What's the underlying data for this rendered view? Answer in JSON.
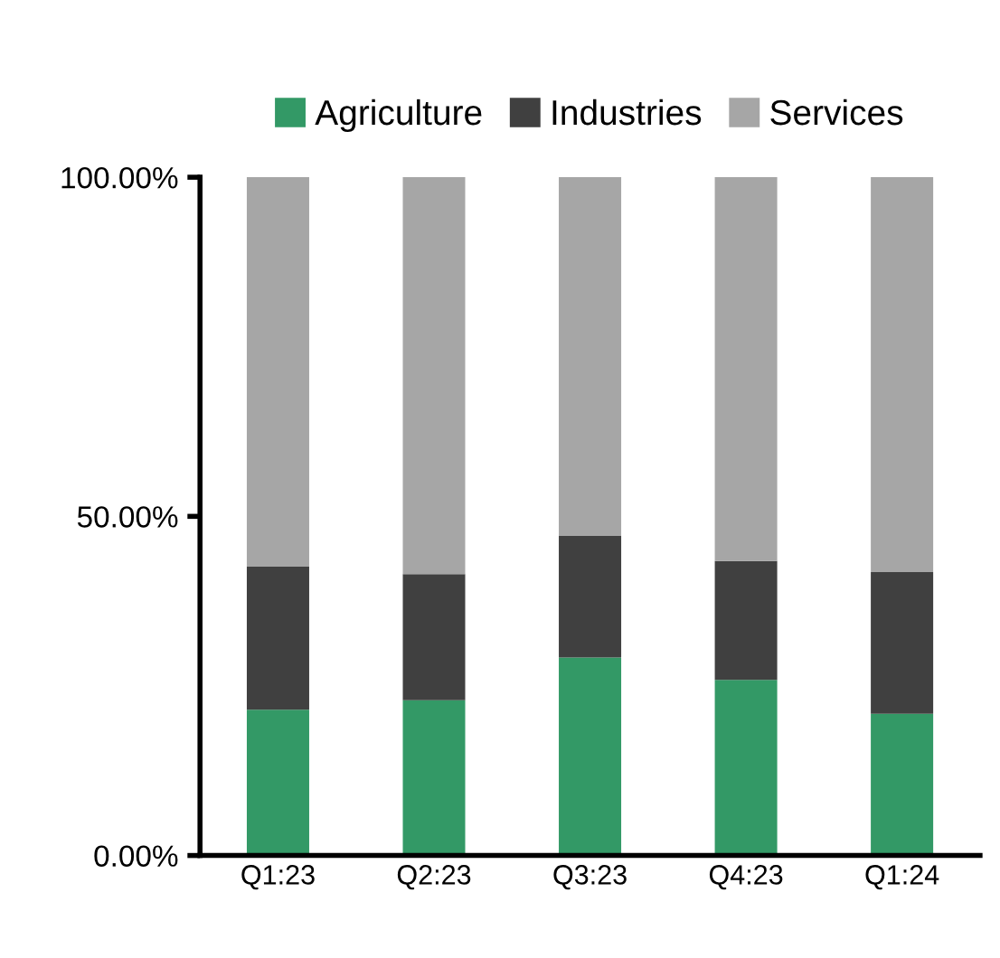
{
  "chart_data": {
    "type": "bar",
    "stacked": true,
    "categories": [
      "Q1:23",
      "Q2:23",
      "Q3:23",
      "Q4:23",
      "Q1:24"
    ],
    "series": [
      {
        "name": "Agriculture",
        "color": "#339966",
        "values": [
          21.5,
          22.9,
          29.2,
          25.9,
          20.9
        ]
      },
      {
        "name": "Industries",
        "color": "#404040",
        "values": [
          21.1,
          18.6,
          17.9,
          17.5,
          20.9
        ]
      },
      {
        "name": "Services",
        "color": "#a6a6a6",
        "values": [
          57.4,
          58.5,
          52.9,
          56.6,
          58.2
        ]
      }
    ],
    "ylim": [
      0,
      100
    ],
    "yticks": [
      {
        "value": 0,
        "label": "0.00%"
      },
      {
        "value": 50,
        "label": "50.00%"
      },
      {
        "value": 100,
        "label": "100.00%"
      }
    ],
    "grid": false,
    "legend": "top"
  }
}
